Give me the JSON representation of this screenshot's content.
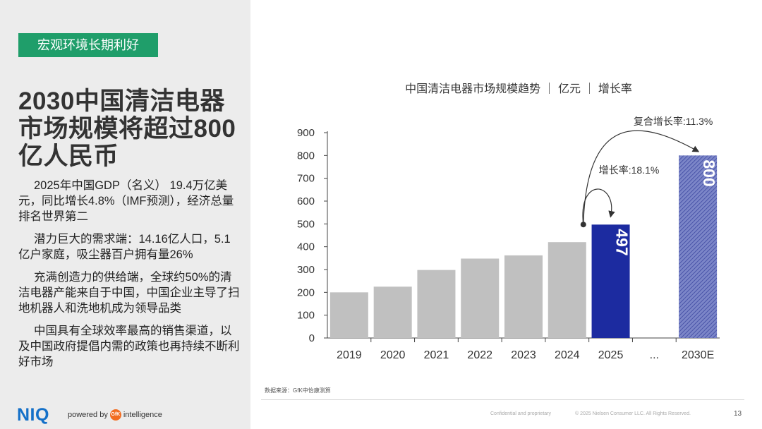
{
  "left": {
    "tag": "宏观环境长期利好",
    "headline": "2030中国清洁电器市场规模将超过800亿人民币",
    "bullets": [
      "2025年中国GDP（名义） 19.4万亿美元，同比增长4.8%（IMF预测），经济总量排名世界第二",
      "潜力巨大的需求端：14.16亿人口，5.1亿户家庭，吸尘器百户拥有量26%",
      "充满创造力的供给端，全球约50%的清洁电器产能来自于中国，中国企业主导了扫地机器人和洗地机成为领导品类",
      "中国具有全球效率最高的销售渠道，以及中国政府提倡内需的政策也再持续不断利好市场"
    ]
  },
  "footer": {
    "brand": "NIQ",
    "powered_by": "powered by",
    "gfk": "GfK",
    "intelligence": "intelligence",
    "confidential": "Confidential and proprietary",
    "copyright": "© 2025 Nielsen Consumer LLC. All Rights Reserved.",
    "page_number": "13"
  },
  "chart_data": {
    "type": "bar",
    "title": "中国清洁电器市场规模趋势 ｜ 亿元 ｜ 增长率",
    "categories": [
      "2019",
      "2020",
      "2021",
      "2022",
      "2023",
      "2024",
      "2025",
      "...",
      "2030E"
    ],
    "values": [
      200,
      225,
      298,
      348,
      362,
      420,
      497,
      null,
      800
    ],
    "data_labels": {
      "2025": "497",
      "2030E": "800"
    },
    "ylim": [
      0,
      900
    ],
    "yticks": [
      0,
      100,
      200,
      300,
      400,
      500,
      600,
      700,
      800,
      900
    ],
    "annotations": {
      "cagr": "复合增长率:11.3%",
      "growth": "增长率:18.1%"
    },
    "colors": {
      "default": "#c0c0c0",
      "highlight": "#1c2ba0",
      "forecast": "#5560b0"
    },
    "source": "数据来源：GfK中怡康测算"
  }
}
